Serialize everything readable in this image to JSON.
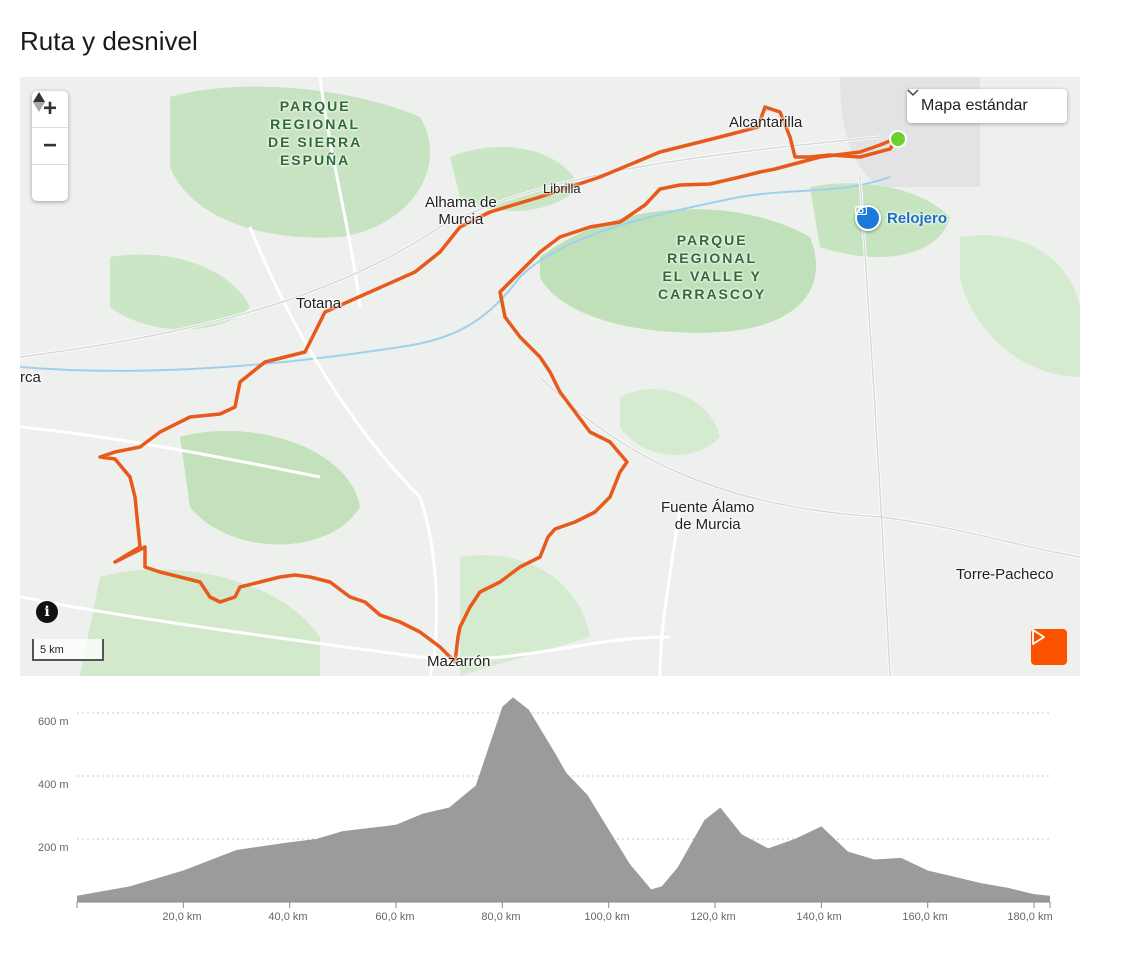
{
  "section": {
    "title": "Ruta y desnivel"
  },
  "map": {
    "maptype_label": "Mapa estándar",
    "scale_label": "5 km",
    "controls": {
      "zoom_in": "+",
      "zoom_out": "−"
    },
    "places": {
      "alcantarilla": "Alcantarilla",
      "librilla": "Librilla",
      "alhama_1": "Alhama de",
      "alhama_2": "Murcia",
      "totana": "Totana",
      "lorca": "rca",
      "fuente_1": "Fuente Álamo",
      "fuente_2": "de Murcia",
      "torre": "Torre-Pacheco",
      "mazarron": "Mazarrón"
    },
    "parks": {
      "espuna": [
        "PARQUE",
        "REGIONAL",
        "DE SIERRA",
        "ESPUÑA"
      ],
      "carrascoy": [
        "PARQUE",
        "REGIONAL",
        "EL VALLE Y",
        "CARRASCOY"
      ]
    },
    "poi": {
      "name": "Relojero",
      "icon": "camera-icon"
    },
    "colors": {
      "route": "#e8591c",
      "start": "#6ed02c",
      "play": "#fc5200",
      "poi": "#1a7ad9"
    }
  },
  "elevation": {
    "y_ticks": [
      "600 m",
      "400 m",
      "200 m"
    ],
    "x_ticks": [
      "20,0 km",
      "40,0 km",
      "60,0 km",
      "80,0 km",
      "100,0 km",
      "120,0 km",
      "140,0 km",
      "160,0 km",
      "180,0 km"
    ]
  },
  "chart_data": {
    "type": "area",
    "title": "",
    "xlabel": "",
    "ylabel": "",
    "xlim": [
      0,
      183
    ],
    "ylim": [
      0,
      700
    ],
    "x": [
      0,
      10,
      20,
      30,
      40,
      45,
      50,
      60,
      65,
      70,
      75,
      80,
      82,
      85,
      90,
      92,
      96,
      100,
      104,
      108,
      110,
      113,
      118,
      121,
      125,
      130,
      135,
      140,
      145,
      150,
      155,
      160,
      165,
      170,
      175,
      180,
      183
    ],
    "y": [
      20,
      50,
      100,
      165,
      190,
      200,
      225,
      245,
      280,
      300,
      370,
      620,
      650,
      610,
      470,
      410,
      340,
      230,
      120,
      40,
      50,
      110,
      260,
      300,
      215,
      170,
      200,
      240,
      160,
      135,
      140,
      100,
      80,
      60,
      45,
      25,
      20
    ],
    "series": [
      {
        "values": [
          20,
          50,
          100,
          165,
          190,
          200,
          225,
          245,
          280,
          300,
          370,
          620,
          650,
          610,
          470,
          410,
          340,
          230,
          120,
          40,
          50,
          110,
          260,
          300,
          215,
          170,
          200,
          240,
          160,
          135,
          140,
          100,
          80,
          60,
          45,
          25,
          20
        ]
      }
    ],
    "grid": true,
    "fill_color": "#9b9b9b"
  }
}
